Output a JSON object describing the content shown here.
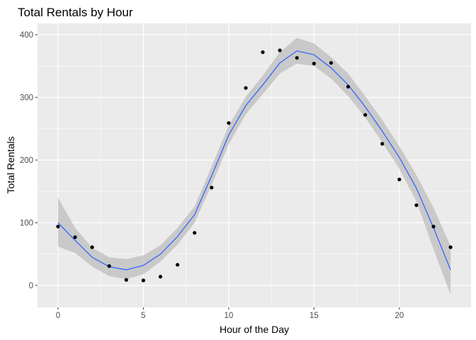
{
  "chart_data": {
    "type": "scatter",
    "title": "Total Rentals by Hour",
    "xlabel": "Hour of the Day",
    "ylabel": "Total Rentals",
    "xlim": [
      -1.2,
      24.2
    ],
    "ylim": [
      -35,
      418
    ],
    "x_ticks": [
      0,
      5,
      10,
      15,
      20
    ],
    "y_ticks": [
      0,
      100,
      200,
      300,
      400
    ],
    "grid": true,
    "legend": "none",
    "colors": {
      "panel_background": "#ebebeb",
      "grid_major": "#ffffff",
      "point": "#000000",
      "smooth_line": "#3366ff",
      "confidence_band": "#bdbdbd",
      "tick_mark": "#333333"
    },
    "points": {
      "x": [
        0,
        1,
        2,
        3,
        4,
        5,
        6,
        7,
        8,
        9,
        10,
        11,
        12,
        13,
        14,
        15,
        16,
        17,
        18,
        19,
        20,
        21,
        22,
        23
      ],
      "y": [
        94,
        77,
        61,
        31,
        9,
        8,
        14,
        33,
        84,
        156,
        259,
        315,
        372,
        375,
        363,
        354,
        355,
        317,
        272,
        226,
        169,
        128,
        94,
        61
      ]
    },
    "smooth": {
      "x": [
        0,
        1,
        2,
        3,
        4,
        5,
        6,
        7,
        8,
        9,
        10,
        11,
        12,
        13,
        14,
        15,
        16,
        17,
        18,
        19,
        20,
        21,
        22,
        23
      ],
      "y": [
        100,
        72,
        45,
        30,
        25,
        32,
        50,
        78,
        113,
        175,
        240,
        287,
        320,
        355,
        374,
        368,
        347,
        320,
        285,
        246,
        204,
        155,
        92,
        25
      ],
      "lower": [
        62,
        52,
        30,
        15,
        10,
        18,
        38,
        65,
        100,
        160,
        225,
        273,
        305,
        338,
        354,
        350,
        330,
        302,
        268,
        228,
        186,
        134,
        58,
        -15
      ],
      "upper": [
        140,
        92,
        60,
        45,
        42,
        48,
        64,
        92,
        126,
        190,
        255,
        301,
        335,
        372,
        395,
        386,
        364,
        338,
        302,
        264,
        222,
        176,
        124,
        63
      ]
    }
  }
}
